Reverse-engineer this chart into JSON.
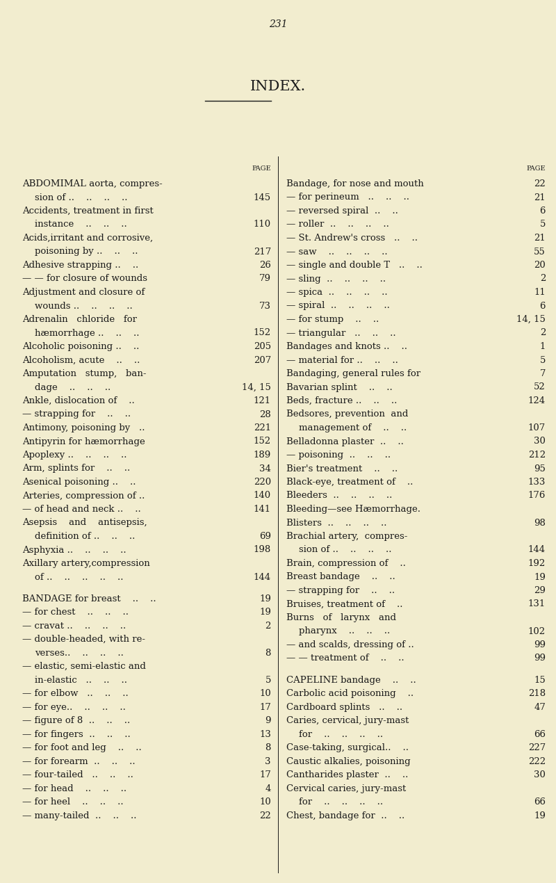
{
  "page_number": "231",
  "title": "INDEX.",
  "background_color": "#f2edcf",
  "text_color": "#1a1a1a",
  "figsize": [
    8.0,
    12.7
  ],
  "dpi": 100,
  "left_entries": [
    {
      "text": "ABDOMIMAL aorta, compres-",
      "cont": "  sion of ..    ..    ..    ..",
      "page": "145",
      "bold": true
    },
    {
      "text": "Accidents, treatment in first",
      "cont": "  instance    ..    ..    ..",
      "page": "110",
      "bold": false
    },
    {
      "text": "Acids,irritant and corrosive,",
      "cont": "  poisoning by ..    ..    ..",
      "page": "217",
      "bold": false
    },
    {
      "text": "Adhesive strapping ..    ..",
      "cont": null,
      "page": "26",
      "bold": false
    },
    {
      "text": "— — for closure of wounds",
      "cont": null,
      "page": "79",
      "bold": false
    },
    {
      "text": "Adjustment and closure of",
      "cont": "  wounds ..    ..    ..    ..",
      "page": "73",
      "bold": false
    },
    {
      "text": "Adrenalin   chloride   for",
      "cont": "  hæmorrhage ..    ..    ..",
      "page": "152",
      "bold": false
    },
    {
      "text": "Alcoholic poisoning ..    ..",
      "cont": null,
      "page": "205",
      "bold": false
    },
    {
      "text": "Alcoholism, acute    ..    ..",
      "cont": null,
      "page": "207",
      "bold": false
    },
    {
      "text": "Amputation   stump,   ban-",
      "cont": "  dage    ..    ..    ..",
      "page": "14, 15",
      "bold": false
    },
    {
      "text": "Ankle, dislocation of    ..",
      "cont": null,
      "page": "121",
      "bold": false
    },
    {
      "text": "— strapping for    ..    ..",
      "cont": null,
      "page": "28",
      "bold": false
    },
    {
      "text": "Antimony, poisoning by   ..",
      "cont": null,
      "page": "221",
      "bold": false
    },
    {
      "text": "Antipyrin for hæmorrhage",
      "cont": null,
      "page": "152",
      "bold": false
    },
    {
      "text": "Apoplexy ..    ..    ..    ..",
      "cont": null,
      "page": "189",
      "bold": false
    },
    {
      "text": "Arm, splints for    ..    ..",
      "cont": null,
      "page": "34",
      "bold": false
    },
    {
      "text": "Asenical poisoning ..    ..",
      "cont": null,
      "page": "220",
      "bold": false
    },
    {
      "text": "Arteries, compression of ..",
      "cont": null,
      "page": "140",
      "bold": false
    },
    {
      "text": "— of head and neck ..    ..",
      "cont": null,
      "page": "141",
      "bold": false
    },
    {
      "text": "Asepsis    and    antisepsis,",
      "cont": "  definition of ..    ..    ..",
      "page": "69",
      "bold": false
    },
    {
      "text": "Asphyxia ..    ..    ..    ..",
      "cont": null,
      "page": "198",
      "bold": false
    },
    {
      "text": "Axillary artery,compression",
      "cont": "  of ..    ..    ..    ..    ..",
      "page": "144",
      "bold": false
    },
    {
      "text": "",
      "cont": null,
      "page": "",
      "bold": false
    },
    {
      "text": "BANDAGE for breast    ..    ..",
      "cont": null,
      "page": "19",
      "bold": true
    },
    {
      "text": "— for chest    ..    ..    ..",
      "cont": null,
      "page": "19",
      "bold": false
    },
    {
      "text": "— cravat ..    ..    ..    ..",
      "cont": null,
      "page": "2",
      "bold": false
    },
    {
      "text": "— double-headed, with re-",
      "cont": "  verses..    ..    ..    ..",
      "page": "8",
      "bold": false
    },
    {
      "text": "— elastic, semi-elastic and",
      "cont": "  in-elastic   ..    ..    ..",
      "page": "5",
      "bold": false
    },
    {
      "text": "— for elbow   ..    ..    ..",
      "cont": null,
      "page": "10",
      "bold": false
    },
    {
      "text": "— for eye..    ..    ..    ..",
      "cont": null,
      "page": "17",
      "bold": false
    },
    {
      "text": "— figure of 8  ..    ..    ..",
      "cont": null,
      "page": "9",
      "bold": false
    },
    {
      "text": "— for fingers  ..    ..    ..",
      "cont": null,
      "page": "13",
      "bold": false
    },
    {
      "text": "— for foot and leg    ..    ..",
      "cont": null,
      "page": "8",
      "bold": false
    },
    {
      "text": "— for forearm  ..    ..    ..",
      "cont": null,
      "page": "3",
      "bold": false
    },
    {
      "text": "— four-tailed   ..    ..    ..",
      "cont": null,
      "page": "17",
      "bold": false
    },
    {
      "text": "— for head    ..    ..    ..",
      "cont": null,
      "page": "4",
      "bold": false
    },
    {
      "text": "— for heel    ..    ..    ..",
      "cont": null,
      "page": "10",
      "bold": false
    },
    {
      "text": "— many-tailed  ..    ..    ..",
      "cont": null,
      "page": "22",
      "bold": false
    }
  ],
  "right_entries": [
    {
      "text": "Bandage, for nose and mouth",
      "cont": null,
      "page": "22",
      "bold": false
    },
    {
      "text": "— for perineum   ..    ..    ..",
      "cont": null,
      "page": "21",
      "bold": false
    },
    {
      "text": "— reversed spiral  ..    ..",
      "cont": null,
      "page": "6",
      "bold": false
    },
    {
      "text": "— roller  ..    ..    ..    ..",
      "cont": null,
      "page": "5",
      "bold": false
    },
    {
      "text": "— St. Andrew's cross   ..    ..",
      "cont": null,
      "page": "21",
      "bold": false
    },
    {
      "text": "— saw    ..    ..    ..    ..",
      "cont": null,
      "page": "55",
      "bold": false
    },
    {
      "text": "— single and double T   ..    ..",
      "cont": null,
      "page": "20",
      "bold": false
    },
    {
      "text": "— sling  ..    ..    ..    ..",
      "cont": null,
      "page": "2",
      "bold": false
    },
    {
      "text": "— spica  ..    ..    ..    ..",
      "cont": null,
      "page": "11",
      "bold": false
    },
    {
      "text": "— spiral  ..    ..    ..    ..",
      "cont": null,
      "page": "6",
      "bold": false
    },
    {
      "text": "— for stump    ..    ..",
      "cont": null,
      "page": "14, 15",
      "bold": false
    },
    {
      "text": "— triangular   ..    ..    ..",
      "cont": null,
      "page": "2",
      "bold": false
    },
    {
      "text": "Bandages and knots ..    ..",
      "cont": null,
      "page": "1",
      "bold": false
    },
    {
      "text": "— material for ..    ..    ..",
      "cont": null,
      "page": "5",
      "bold": false
    },
    {
      "text": "Bandaging, general rules for",
      "cont": null,
      "page": "7",
      "bold": false
    },
    {
      "text": "Bavarian splint    ..    ..",
      "cont": null,
      "page": "52",
      "bold": false
    },
    {
      "text": "Beds, fracture ..    ..    ..",
      "cont": null,
      "page": "124",
      "bold": false
    },
    {
      "text": "Bedsores, prevention  and",
      "cont": "  management of    ..    ..",
      "page": "107",
      "bold": false
    },
    {
      "text": "Belladonna plaster  ..    ..",
      "cont": null,
      "page": "30",
      "bold": false
    },
    {
      "text": "— poisoning  ..    ..    ..",
      "cont": null,
      "page": "212",
      "bold": false
    },
    {
      "text": "Bier's treatment    ..    ..",
      "cont": null,
      "page": "95",
      "bold": false
    },
    {
      "text": "Black-eye, treatment of    ..",
      "cont": null,
      "page": "133",
      "bold": false
    },
    {
      "text": "Bleeders  ..    ..    ..    ..",
      "cont": null,
      "page": "176",
      "bold": false
    },
    {
      "text": "Bleeding—see Hæmorrhage.",
      "cont": null,
      "page": "",
      "bold": false
    },
    {
      "text": "Blisters  ..    ..    ..    ..",
      "cont": null,
      "page": "98",
      "bold": false
    },
    {
      "text": "Brachial artery,  compres-",
      "cont": "  sion of ..    ..    ..    ..",
      "page": "144",
      "bold": false
    },
    {
      "text": "Brain, compression of    ..",
      "cont": null,
      "page": "192",
      "bold": false
    },
    {
      "text": "Breast bandage    ..    ..",
      "cont": null,
      "page": "19",
      "bold": false
    },
    {
      "text": "— strapping for    ..    ..",
      "cont": null,
      "page": "29",
      "bold": false
    },
    {
      "text": "Bruises, treatment of    ..",
      "cont": null,
      "page": "131",
      "bold": false
    },
    {
      "text": "Burns   of   larynx   and",
      "cont": "  pharynx    ..    ..    ..",
      "page": "102",
      "bold": false
    },
    {
      "text": "— and scalds, dressing of ..",
      "cont": null,
      "page": "99",
      "bold": false
    },
    {
      "text": "— — treatment of    ..    ..",
      "cont": null,
      "page": "99",
      "bold": false
    },
    {
      "text": "",
      "cont": null,
      "page": "",
      "bold": false
    },
    {
      "text": "CAPELINE bandage    ..    ..",
      "cont": null,
      "page": "15",
      "bold": true
    },
    {
      "text": "Carbolic acid poisoning    ..",
      "cont": null,
      "page": "218",
      "bold": false
    },
    {
      "text": "Cardboard splints   ..    ..",
      "cont": null,
      "page": "47",
      "bold": false
    },
    {
      "text": "Caries, cervical, jury-mast",
      "cont": "  for    ..    ..    ..    ..",
      "page": "66",
      "bold": false
    },
    {
      "text": "Case-taking, surgical..    ..",
      "cont": null,
      "page": "227",
      "bold": false
    },
    {
      "text": "Caustic alkalies, poisoning",
      "cont": null,
      "page": "222",
      "bold": false
    },
    {
      "text": "Cantharides plaster  ..    ..",
      "cont": null,
      "page": "30",
      "bold": false
    },
    {
      "text": "Cervical caries, jury-mast",
      "cont": "  for    ..    ..    ..    ..",
      "page": "66",
      "bold": false
    },
    {
      "text": "Chest, bandage for  ..    ..",
      "cont": null,
      "page": "19",
      "bold": false
    }
  ]
}
